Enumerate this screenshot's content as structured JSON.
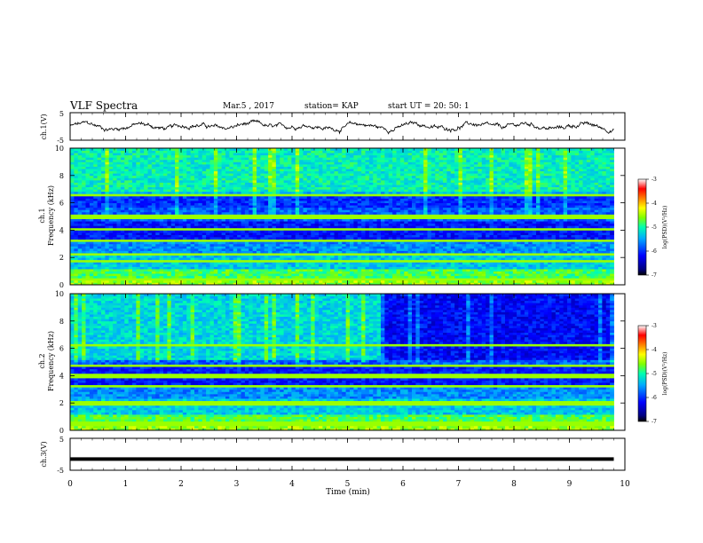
{
  "header": {
    "title": "VLF Spectra",
    "date": "Mar.5 , 2017",
    "station": "station= KAP",
    "start": "start UT = 20: 50: 1"
  },
  "chart_data": [
    {
      "type": "line",
      "panel": "ch1-waveform",
      "ylabel": "ch.1(V)",
      "ylim": [
        -5,
        5
      ],
      "y_ticks": [
        "5",
        "-5"
      ],
      "xlim": [
        0,
        10
      ],
      "description_values": "noisy voltage trace oscillating roughly between -2 and 2 V over 0–9.8 min"
    },
    {
      "type": "heatmap",
      "panel": "ch1-spectrogram",
      "ylabel": "ch.1 Frequency (kHz)",
      "ylim": [
        0,
        10
      ],
      "y_ticks": [
        "0",
        "2",
        "4",
        "6",
        "8",
        "10"
      ],
      "xlim": [
        0,
        10
      ],
      "data_end_min": 9.8,
      "colorbar": {
        "label": "log(PSD)(V²/Hz)",
        "ticks": [
          "-3",
          "-4",
          "-5",
          "-6",
          "-7"
        ],
        "range": [
          -7,
          -3
        ]
      }
    },
    {
      "type": "heatmap",
      "panel": "ch2-spectrogram",
      "ylabel": "ch.2 Frequency (kHz)",
      "ylim": [
        0,
        10
      ],
      "y_ticks": [
        "0",
        "2",
        "4",
        "6",
        "8",
        "10"
      ],
      "xlim": [
        0,
        10
      ],
      "data_end_min": 9.8,
      "regime_change_min": 5.6,
      "colorbar": {
        "label": "log(PSD)(V²/Hz)",
        "ticks": [
          "-3",
          "-4",
          "-5",
          "-6",
          "-7"
        ],
        "range": [
          -7,
          -3
        ]
      }
    },
    {
      "type": "line",
      "panel": "ch3-waveform",
      "ylabel": "ch.3(V)",
      "ylim": [
        -5,
        5
      ],
      "y_ticks": [
        "5",
        "-5"
      ],
      "level_value": -1.5,
      "xlim": [
        0,
        10
      ],
      "xlabel": "Time (min)",
      "x_ticks": [
        "0",
        "1",
        "2",
        "3",
        "4",
        "5",
        "6",
        "7",
        "8",
        "9",
        "10"
      ]
    }
  ],
  "colors": {
    "colormap": [
      "#00007f",
      "#0000ff",
      "#00aaff",
      "#00ffff",
      "#40ff90",
      "#a0ff00",
      "#ffff00",
      "#ff8000",
      "#ff0000",
      "#ffffff"
    ]
  }
}
